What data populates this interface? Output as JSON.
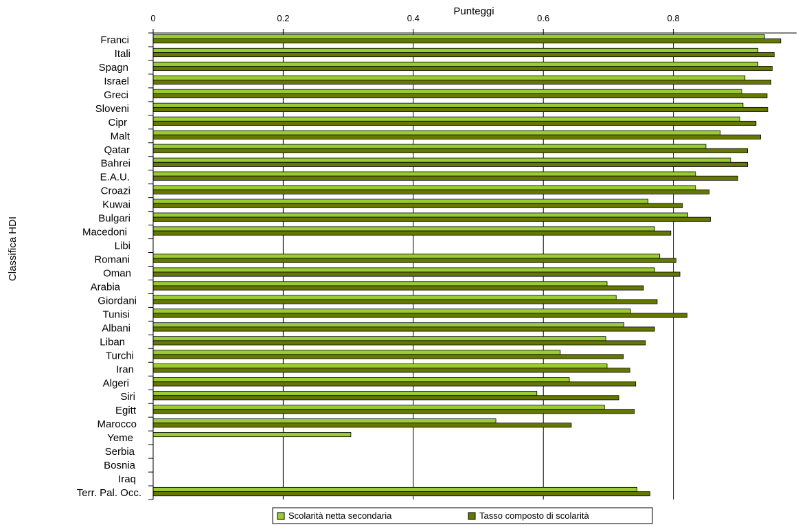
{
  "chart_data": {
    "type": "bar",
    "orientation": "horizontal",
    "title": "",
    "xlabel": "Punteggi",
    "ylabel": "Classifica HDI",
    "xlim": [
      0,
      1
    ],
    "xticks": [
      0,
      0.2,
      0.4,
      0.6,
      0.8
    ],
    "xtick_labels": [
      "0",
      "0.2",
      "0.4",
      "0.6",
      "0.8"
    ],
    "x_axis_position": "top",
    "grid": "vertical",
    "legend_position": "bottom",
    "categories": [
      "Franci",
      "Itali",
      "Spagn",
      "Israel",
      "Greci",
      "Sloveni",
      "Cipr",
      "Malt",
      "Qatar",
      "Bahrei",
      "E.A.U.",
      "Croazi",
      "Kuwai",
      "Bulgari",
      "Macedoni",
      "Libi",
      "Romani",
      "Oman",
      "Arabia",
      "Giordani",
      "Tunisi",
      "Albani",
      "Liban",
      "Turchi",
      "Iran",
      "Algeri",
      "Siri",
      "Egitt",
      "Marocco",
      "Yeme",
      "Serbia",
      "Bosnia",
      "Iraq",
      "Terr. Pal. Occ."
    ],
    "series": [
      {
        "name": "Scolarità netta secondaria",
        "color": "#99cc33",
        "values": [
          0.94,
          0.93,
          0.93,
          0.91,
          0.905,
          0.907,
          0.902,
          0.872,
          0.85,
          0.888,
          0.834,
          0.834,
          0.761,
          0.822,
          0.771,
          null,
          0.779,
          0.771,
          0.698,
          0.712,
          0.734,
          0.724,
          0.696,
          0.626,
          0.698,
          0.64,
          0.59,
          0.694,
          0.527,
          0.304,
          null,
          null,
          null,
          0.744
        ]
      },
      {
        "name": "Tasso composto di scolarità",
        "color": "#667700",
        "values": [
          0.965,
          0.955,
          0.952,
          0.95,
          0.944,
          0.945,
          0.927,
          0.934,
          0.914,
          0.914,
          0.899,
          0.855,
          0.814,
          0.857,
          0.796,
          null,
          0.804,
          0.81,
          0.754,
          0.775,
          0.821,
          0.771,
          0.757,
          0.723,
          0.733,
          0.742,
          0.716,
          0.74,
          0.643,
          null,
          null,
          null,
          null,
          0.764
        ]
      }
    ]
  }
}
